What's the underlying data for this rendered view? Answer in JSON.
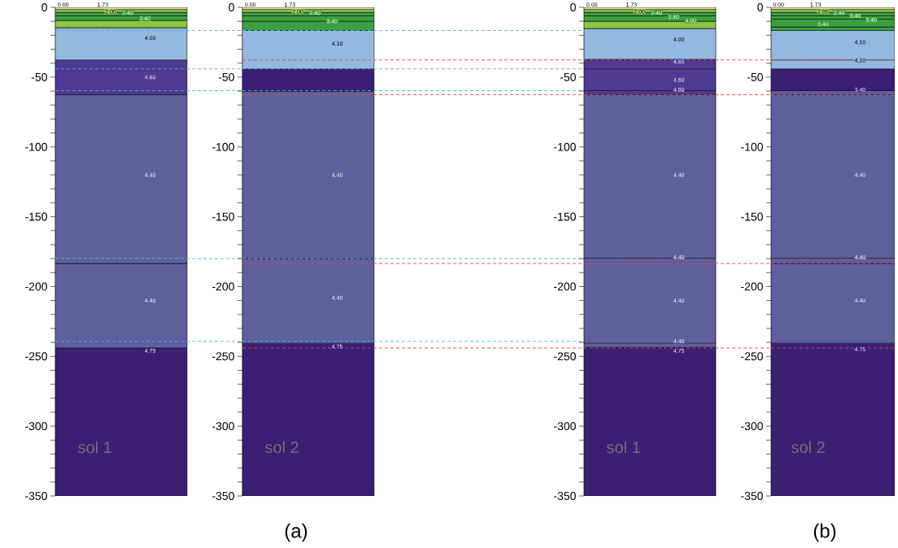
{
  "chart_data": [
    {
      "type": "bar",
      "stacked": true,
      "categories": [
        "sol 1"
      ],
      "ylim": [
        -350,
        0
      ],
      "yticks": [
        0,
        {
          "value": -10,
          "label": null
        },
        {
          "value": -20,
          "label": null
        },
        {
          "value": -30,
          "label": null
        },
        {
          "value": -40,
          "label": null
        },
        -50,
        {
          "value": -60,
          "label": null
        },
        {
          "value": -70,
          "label": null
        },
        {
          "value": -80,
          "label": null
        },
        {
          "value": -90,
          "label": null
        },
        -100,
        {
          "value": -110,
          "label": null
        },
        {
          "value": -120,
          "label": null
        },
        {
          "value": -130,
          "label": null
        },
        {
          "value": -140,
          "label": null
        },
        -150,
        {
          "value": -160,
          "label": null
        },
        {
          "value": -170,
          "label": null
        },
        {
          "value": -180,
          "label": null
        },
        {
          "value": -190,
          "label": null
        },
        -200,
        {
          "value": -210,
          "label": null
        },
        {
          "value": -220,
          "label": null
        },
        {
          "value": -230,
          "label": null
        },
        {
          "value": -240,
          "label": null
        },
        -250,
        {
          "value": -260,
          "label": null
        },
        {
          "value": -270,
          "label": null
        },
        {
          "value": -280,
          "label": null
        },
        {
          "value": -290,
          "label": null
        },
        -300,
        {
          "value": -310,
          "label": null
        },
        {
          "value": -320,
          "label": null
        },
        {
          "value": -330,
          "label": null
        },
        {
          "value": -340,
          "label": null
        },
        -350
      ],
      "series": [
        {
          "color": "#d8ea9a",
          "values": [
            -1.6
          ]
        },
        {
          "color": "#a8d060",
          "values": [
            -1.9
          ]
        },
        {
          "color": "#3aa040",
          "values": [
            -2.6
          ]
        },
        {
          "color": "#3aa040",
          "values": [
            -3.3
          ]
        },
        {
          "color": "#8cc63f",
          "values": [
            -5.2
          ]
        },
        {
          "color": "#93b9e0",
          "values": [
            -23.1
          ]
        },
        {
          "color": "#4e3a92",
          "values": [
            -24.9
          ]
        },
        {
          "color": "#5f5f9e",
          "values": [
            -120.9
          ]
        },
        {
          "color": "#5f5f9e",
          "values": [
            -60.5
          ]
        },
        {
          "color": "#3b1f74",
          "values": [
            -106
          ]
        }
      ],
      "ref_lines": [
        {
          "axis": "y",
          "value": -16.6,
          "color": "#4fb3e0",
          "line_style": "dashed"
        },
        {
          "axis": "y",
          "value": -44.1,
          "color": "#4fb3e0",
          "line_style": "dashed"
        },
        {
          "axis": "y",
          "value": -59.7,
          "color": "#4fb3e0",
          "line_style": "dashed"
        },
        {
          "axis": "y",
          "value": -180,
          "color": "#4fb3e0",
          "line_style": "dashed"
        },
        {
          "axis": "y",
          "value": -239.3,
          "color": "#4fb3e0",
          "line_style": "dashed"
        }
      ],
      "annotations": [
        "(a)",
        {
          "text": "0.00",
          "y": 0
        },
        {
          "text": "1.73",
          "y": 0
        },
        {
          "text": "2.00",
          "y": -3
        },
        {
          "text": "2.40",
          "y": -4
        },
        {
          "text": "3.40",
          "y": -8
        },
        {
          "text": "4.00",
          "y": -22
        },
        {
          "text": "4.60",
          "y": -50
        },
        {
          "text": "4.40",
          "y": -120
        },
        {
          "text": "4.40",
          "y": -210
        },
        {
          "text": "4.75",
          "y": -246
        }
      ]
    },
    {
      "type": "bar",
      "stacked": true,
      "categories": [
        "sol 2"
      ],
      "ylim": [
        -350,
        0
      ],
      "yticks": [
        0,
        {
          "value": -10,
          "label": null
        },
        {
          "value": -20,
          "label": null
        },
        {
          "value": -30,
          "label": null
        },
        {
          "value": -40,
          "label": null
        },
        -50,
        {
          "value": -60,
          "label": null
        },
        {
          "value": -70,
          "label": null
        },
        {
          "value": -80,
          "label": null
        },
        {
          "value": -90,
          "label": null
        },
        -100,
        {
          "value": -110,
          "label": null
        },
        {
          "value": -120,
          "label": null
        },
        {
          "value": -130,
          "label": null
        },
        {
          "value": -140,
          "label": null
        },
        -150,
        {
          "value": -160,
          "label": null
        },
        {
          "value": -170,
          "label": null
        },
        {
          "value": -180,
          "label": null
        },
        {
          "value": -190,
          "label": null
        },
        -200,
        {
          "value": -210,
          "label": null
        },
        {
          "value": -220,
          "label": null
        },
        {
          "value": -230,
          "label": null
        },
        {
          "value": -240,
          "label": null
        },
        -250,
        {
          "value": -260,
          "label": null
        },
        {
          "value": -270,
          "label": null
        },
        {
          "value": -280,
          "label": null
        },
        {
          "value": -290,
          "label": null
        },
        -300,
        {
          "value": -310,
          "label": null
        },
        {
          "value": -320,
          "label": null
        },
        {
          "value": -330,
          "label": null
        },
        {
          "value": -340,
          "label": null
        },
        -350
      ],
      "series": [
        {
          "color": "#d8ea9a",
          "values": [
            -1.6
          ]
        },
        {
          "color": "#a8d060",
          "values": [
            -1.9
          ]
        },
        {
          "color": "#3aa040",
          "values": [
            -2.6
          ]
        },
        {
          "color": "#3aa040",
          "values": [
            -3.9
          ]
        },
        {
          "color": "#3aa040",
          "values": [
            -6.6
          ]
        },
        {
          "color": "#93b9e0",
          "values": [
            -27.5
          ]
        },
        {
          "color": "#3b1f74",
          "values": [
            -16
          ]
        },
        {
          "color": "#5f5f9e",
          "values": [
            -120
          ]
        },
        {
          "color": "#5f5f9e",
          "values": [
            -60.5
          ]
        },
        {
          "color": "#3b1f74",
          "values": [
            -109.4
          ]
        }
      ],
      "ref_lines": [
        {
          "axis": "y",
          "value": -16.6,
          "color": "#4fb3e0",
          "line_style": "dashed"
        },
        {
          "axis": "y",
          "value": -44.1,
          "color": "#4fb3e0",
          "line_style": "dashed"
        },
        {
          "axis": "y",
          "value": -59.7,
          "color": "#4fb3e0",
          "line_style": "dashed"
        },
        {
          "axis": "y",
          "value": -180,
          "color": "#4fb3e0",
          "line_style": "dashed"
        },
        {
          "axis": "y",
          "value": -239.3,
          "color": "#4fb3e0",
          "line_style": "dashed"
        },
        {
          "axis": "y",
          "value": -37.7,
          "color": "#e04848",
          "line_style": "dashed"
        },
        {
          "axis": "y",
          "value": -62.6,
          "color": "#e04848",
          "line_style": "dashed"
        },
        {
          "axis": "y",
          "value": -183.5,
          "color": "#e04848",
          "line_style": "dashed"
        },
        {
          "axis": "y",
          "value": -244,
          "color": "#e04848",
          "line_style": "dashed"
        }
      ],
      "annotations": [
        {
          "text": "0.00",
          "y": 0
        },
        {
          "text": "1.73",
          "y": 0
        },
        {
          "text": "2.00",
          "y": -3
        },
        {
          "text": "2.40",
          "y": -4
        },
        {
          "text": "3.40",
          "y": -10
        },
        {
          "text": "4.10",
          "y": -26
        },
        {
          "text": "4.40",
          "y": -120
        },
        {
          "text": "4.40",
          "y": -208
        },
        {
          "text": "4.75",
          "y": -243
        }
      ]
    },
    {
      "type": "bar",
      "stacked": true,
      "categories": [
        "sol 1"
      ],
      "ylim": [
        -350,
        0
      ],
      "yticks": [
        0,
        {
          "value": -10,
          "label": null
        },
        {
          "value": -20,
          "label": null
        },
        {
          "value": -30,
          "label": null
        },
        {
          "value": -40,
          "label": null
        },
        -50,
        {
          "value": -60,
          "label": null
        },
        {
          "value": -70,
          "label": null
        },
        {
          "value": -80,
          "label": null
        },
        {
          "value": -90,
          "label": null
        },
        -100,
        {
          "value": -110,
          "label": null
        },
        {
          "value": -120,
          "label": null
        },
        {
          "value": -130,
          "label": null
        },
        {
          "value": -140,
          "label": null
        },
        -150,
        {
          "value": -160,
          "label": null
        },
        {
          "value": -170,
          "label": null
        },
        {
          "value": -180,
          "label": null
        },
        {
          "value": -190,
          "label": null
        },
        -200,
        {
          "value": -210,
          "label": null
        },
        {
          "value": -220,
          "label": null
        },
        {
          "value": -230,
          "label": null
        },
        {
          "value": -240,
          "label": null
        },
        -250,
        {
          "value": -260,
          "label": null
        },
        {
          "value": -270,
          "label": null
        },
        {
          "value": -280,
          "label": null
        },
        {
          "value": -290,
          "label": null
        },
        -300,
        {
          "value": -310,
          "label": null
        },
        {
          "value": -320,
          "label": null
        },
        {
          "value": -330,
          "label": null
        },
        {
          "value": -340,
          "label": null
        },
        -350
      ],
      "series": [
        {
          "color": "#d8ea9a",
          "values": [
            -1.6
          ]
        },
        {
          "color": "#a8d060",
          "values": [
            -1.9
          ]
        },
        {
          "color": "#3aa040",
          "values": [
            -2.6
          ]
        },
        {
          "color": "#3aa040",
          "values": [
            -3.9
          ]
        },
        {
          "color": "#8cc63f",
          "values": [
            -5.2
          ]
        },
        {
          "color": "#93b9e0",
          "values": [
            -22.1
          ]
        },
        {
          "color": "#4e3a92",
          "values": [
            -6.8
          ]
        },
        {
          "color": "#4e3a92",
          "values": [
            -15.6
          ]
        },
        {
          "color": "#4e3a92",
          "values": [
            -2.9
          ]
        },
        {
          "color": "#5f5f9e",
          "values": [
            -117.1
          ]
        },
        {
          "color": "#5f5f9e",
          "values": [
            -60.9
          ]
        },
        {
          "color": "#5f5f9e",
          "values": [
            -3
          ]
        },
        {
          "color": "#3b1f74",
          "values": [
            -106.4
          ]
        }
      ],
      "ref_lines": [
        {
          "axis": "y",
          "value": -37.7,
          "color": "#e04848",
          "line_style": "dashed"
        },
        {
          "axis": "y",
          "value": -62.6,
          "color": "#e04848",
          "line_style": "dashed"
        },
        {
          "axis": "y",
          "value": -183.5,
          "color": "#e04848",
          "line_style": "dashed"
        },
        {
          "axis": "y",
          "value": -244,
          "color": "#e04848",
          "line_style": "dashed"
        }
      ],
      "annotations": [
        "(b)",
        {
          "text": "0.00",
          "y": 0
        },
        {
          "text": "1.73",
          "y": 0
        },
        {
          "text": "2.00",
          "y": -3
        },
        {
          "text": "2.40",
          "y": -4
        },
        {
          "text": "3.40",
          "y": -7
        },
        {
          "text": "4.00",
          "y": -9.5
        },
        {
          "text": "4.00",
          "y": -23
        },
        {
          "text": "4.60",
          "y": -39
        },
        {
          "text": "4.60",
          "y": -52
        },
        {
          "text": "4.60",
          "y": -59
        },
        {
          "text": "4.40",
          "y": -120
        },
        {
          "text": "4.40",
          "y": -179
        },
        {
          "text": "4.40",
          "y": -210
        },
        {
          "text": "4.40",
          "y": -239
        },
        {
          "text": "4.75",
          "y": -246
        }
      ]
    },
    {
      "type": "bar",
      "stacked": true,
      "categories": [
        "sol 2"
      ],
      "ylim": [
        -350,
        0
      ],
      "yticks": [
        0,
        {
          "value": -10,
          "label": null
        },
        {
          "value": -20,
          "label": null
        },
        {
          "value": -30,
          "label": null
        },
        {
          "value": -40,
          "label": null
        },
        -50,
        {
          "value": -60,
          "label": null
        },
        {
          "value": -70,
          "label": null
        },
        {
          "value": -80,
          "label": null
        },
        {
          "value": -90,
          "label": null
        },
        -100,
        {
          "value": -110,
          "label": null
        },
        {
          "value": -120,
          "label": null
        },
        {
          "value": -130,
          "label": null
        },
        {
          "value": -140,
          "label": null
        },
        -150,
        {
          "value": -160,
          "label": null
        },
        {
          "value": -170,
          "label": null
        },
        {
          "value": -180,
          "label": null
        },
        {
          "value": -190,
          "label": null
        },
        -200,
        {
          "value": -210,
          "label": null
        },
        {
          "value": -220,
          "label": null
        },
        {
          "value": -230,
          "label": null
        },
        {
          "value": -240,
          "label": null
        },
        -250,
        {
          "value": -260,
          "label": null
        },
        {
          "value": -270,
          "label": null
        },
        {
          "value": -280,
          "label": null
        },
        {
          "value": -290,
          "label": null
        },
        -300,
        {
          "value": -310,
          "label": null
        },
        {
          "value": -320,
          "label": null
        },
        {
          "value": -330,
          "label": null
        },
        {
          "value": -340,
          "label": null
        },
        -350
      ],
      "series": [
        {
          "color": "#d8ea9a",
          "values": [
            -1.6
          ]
        },
        {
          "color": "#a8d060",
          "values": [
            -1.9
          ]
        },
        {
          "color": "#3aa040",
          "values": [
            -2.6
          ]
        },
        {
          "color": "#3aa040",
          "values": [
            -2.4
          ]
        },
        {
          "color": "#3aa040",
          "values": [
            -5.5
          ]
        },
        {
          "color": "#3aa040",
          "values": [
            -2.6
          ]
        },
        {
          "color": "#93b9e0",
          "values": [
            -21.1
          ]
        },
        {
          "color": "#93b9e0",
          "values": [
            -6.4
          ]
        },
        {
          "color": "#3b1f74",
          "values": [
            -15.6
          ]
        },
        {
          "color": "#5f5f9e",
          "values": [
            -2.9
          ]
        },
        {
          "color": "#5f5f9e",
          "values": [
            -117.1
          ]
        },
        {
          "color": "#5f5f9e",
          "values": [
            -3.8
          ]
        },
        {
          "color": "#5f5f9e",
          "values": [
            -57.1
          ]
        },
        {
          "color": "#3b1f74",
          "values": [
            -109.4
          ]
        }
      ],
      "ref_lines": [
        {
          "axis": "y",
          "value": -37.7,
          "color": "#e04848",
          "line_style": "dashed"
        },
        {
          "axis": "y",
          "value": -62.6,
          "color": "#e04848",
          "line_style": "dashed"
        },
        {
          "axis": "y",
          "value": -183.5,
          "color": "#e04848",
          "line_style": "dashed"
        },
        {
          "axis": "y",
          "value": -244,
          "color": "#e04848",
          "line_style": "dashed"
        }
      ],
      "annotations": [
        {
          "text": "0.00",
          "y": 0
        },
        {
          "text": "1.73",
          "y": 0
        },
        {
          "text": "2.00",
          "y": -3
        },
        {
          "text": "2.40",
          "y": -4
        },
        {
          "text": "3.40",
          "y": -6
        },
        {
          "text": "3.40",
          "y": -9
        },
        {
          "text": "3.40",
          "y": -12
        },
        {
          "text": "4.10",
          "y": -25
        },
        {
          "text": "4.10",
          "y": -38
        },
        {
          "text": "3.40",
          "y": -59
        },
        {
          "text": "4.40",
          "y": -120
        },
        {
          "text": "4.40",
          "y": -179
        },
        {
          "text": "4.40",
          "y": -210
        },
        {
          "text": "4.75",
          "y": -245
        }
      ]
    }
  ]
}
